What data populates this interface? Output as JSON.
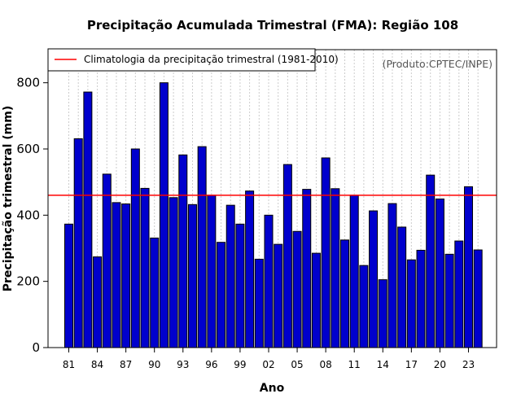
{
  "chart_data": {
    "type": "bar",
    "title": "Precipitação Acumulada Trimestral (FMA): Região 108",
    "xlabel": "Ano",
    "ylabel": "Precipitação trimestral (mm)",
    "ylim": [
      0,
      900
    ],
    "yticks": [
      0,
      200,
      400,
      600,
      800
    ],
    "source": "(Produto:CPTEC/INPE)",
    "legend": {
      "label": "Climatologia da precipitação trimestral (1981-2010)",
      "position": "top-left"
    },
    "climatology": 460,
    "categories": [
      "81",
      "82",
      "83",
      "84",
      "85",
      "86",
      "87",
      "88",
      "89",
      "90",
      "91",
      "92",
      "93",
      "94",
      "95",
      "96",
      "97",
      "98",
      "99",
      "00",
      "01",
      "02",
      "03",
      "04",
      "05",
      "06",
      "07",
      "08",
      "09",
      "10",
      "11",
      "12",
      "13",
      "14",
      "15",
      "16",
      "17",
      "18",
      "19",
      "20",
      "21",
      "22",
      "23",
      "24"
    ],
    "xtick_labels": [
      "81",
      "84",
      "87",
      "90",
      "93",
      "96",
      "99",
      "02",
      "05",
      "08",
      "11",
      "14",
      "17",
      "20",
      "23"
    ],
    "values": [
      373,
      631,
      772,
      274,
      524,
      438,
      434,
      600,
      481,
      331,
      800,
      453,
      582,
      432,
      607,
      460,
      318,
      430,
      373,
      473,
      267,
      400,
      312,
      553,
      351,
      478,
      285,
      573,
      480,
      325,
      460,
      248,
      413,
      205,
      435,
      364,
      265,
      294,
      521,
      449,
      282,
      322,
      486,
      295
    ],
    "colors": {
      "bar": "#0000cd",
      "bar_edge": "#000000",
      "climatology_line": "#ff0000",
      "grid": "#cccccc",
      "frame": "#000000"
    }
  }
}
